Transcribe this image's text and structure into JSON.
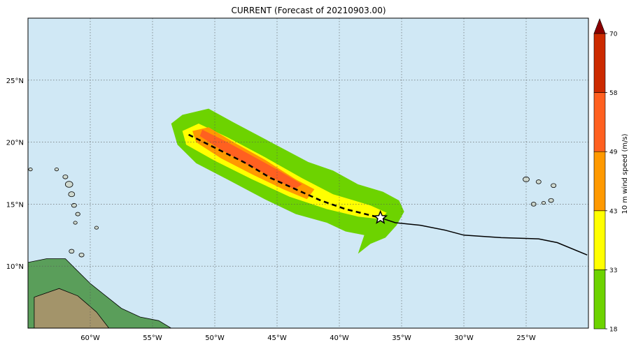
{
  "title": "CURRENT (Forecast of 20210903.00)",
  "map": {
    "lon_range": [
      -65,
      -20
    ],
    "lat_range": [
      5,
      30
    ],
    "x_ticks": [
      {
        "value": -60,
        "label": "60°W"
      },
      {
        "value": -55,
        "label": "55°W"
      },
      {
        "value": -50,
        "label": "50°W"
      },
      {
        "value": -45,
        "label": "45°W"
      },
      {
        "value": -40,
        "label": "40°W"
      },
      {
        "value": -35,
        "label": "35°W"
      },
      {
        "value": -30,
        "label": "30°W"
      },
      {
        "value": -25,
        "label": "25°W"
      }
    ],
    "y_ticks": [
      {
        "value": 10,
        "label": "10°N"
      },
      {
        "value": 15,
        "label": "15°N"
      },
      {
        "value": 20,
        "label": "20°N"
      },
      {
        "value": 25,
        "label": "25°N"
      }
    ],
    "grid": true,
    "ocean_color": "#d0e8f5",
    "current_position": {
      "lon": -36.7,
      "lat": 13.9
    },
    "observed_track": [
      [
        -36.7,
        13.9
      ],
      [
        -35.5,
        13.5
      ],
      [
        -33.5,
        13.3
      ],
      [
        -31.5,
        12.9
      ],
      [
        -30.0,
        12.5
      ],
      [
        -27.0,
        12.3
      ],
      [
        -24.0,
        12.2
      ],
      [
        -22.5,
        11.9
      ],
      [
        -20.1,
        10.9
      ]
    ],
    "forecast_track": [
      [
        -52.1,
        20.6
      ],
      [
        -49.5,
        19.3
      ],
      [
        -47.5,
        18.3
      ],
      [
        -45.5,
        17.1
      ],
      [
        -43.5,
        16.2
      ],
      [
        -41.5,
        15.3
      ],
      [
        -39.5,
        14.6
      ],
      [
        -37.5,
        14.1
      ],
      [
        -36.7,
        13.9
      ]
    ],
    "wind_swath": [
      {
        "threshold": 18,
        "color": "#6dd300",
        "polygon": [
          [
            -52.6,
            22.2
          ],
          [
            -50.5,
            22.7
          ],
          [
            -48.5,
            21.6
          ],
          [
            -45.5,
            20.0
          ],
          [
            -42.5,
            18.4
          ],
          [
            -40.5,
            17.7
          ],
          [
            -38.5,
            16.6
          ],
          [
            -36.5,
            16.0
          ],
          [
            -35.2,
            15.3
          ],
          [
            -34.8,
            14.4
          ],
          [
            -35.4,
            13.3
          ],
          [
            -36.3,
            12.3
          ],
          [
            -37.5,
            11.8
          ],
          [
            -38.5,
            11.0
          ],
          [
            -38.0,
            12.5
          ],
          [
            -39.5,
            12.8
          ],
          [
            -41.0,
            13.5
          ],
          [
            -43.5,
            14.2
          ],
          [
            -46.0,
            15.4
          ],
          [
            -49.0,
            17.0
          ],
          [
            -51.5,
            18.3
          ],
          [
            -53.0,
            19.8
          ],
          [
            -53.5,
            21.5
          ]
        ]
      },
      {
        "threshold": 33,
        "color": "#ffff00",
        "polygon": [
          [
            -52.6,
            20.9
          ],
          [
            -51.3,
            21.5
          ],
          [
            -49.0,
            20.4
          ],
          [
            -46.0,
            18.8
          ],
          [
            -43.0,
            17.1
          ],
          [
            -40.5,
            15.8
          ],
          [
            -37.5,
            14.9
          ],
          [
            -36.2,
            14.3
          ],
          [
            -36.7,
            13.8
          ],
          [
            -38.5,
            14.0
          ],
          [
            -41.0,
            14.6
          ],
          [
            -44.0,
            15.6
          ],
          [
            -47.0,
            17.0
          ],
          [
            -50.0,
            18.5
          ],
          [
            -52.3,
            19.8
          ]
        ]
      },
      {
        "threshold": 43,
        "color": "#ff9900",
        "polygon": [
          [
            -51.8,
            20.9
          ],
          [
            -50.5,
            21.2
          ],
          [
            -48.5,
            20.0
          ],
          [
            -46.0,
            18.6
          ],
          [
            -43.5,
            17.0
          ],
          [
            -42.0,
            16.2
          ],
          [
            -42.6,
            15.4
          ],
          [
            -44.5,
            16.2
          ],
          [
            -47.0,
            17.4
          ],
          [
            -49.5,
            18.7
          ],
          [
            -51.5,
            20.0
          ]
        ]
      },
      {
        "threshold": 49,
        "color": "#ff6020",
        "polygon": [
          [
            -51.0,
            21.0
          ],
          [
            -49.0,
            20.0
          ],
          [
            -47.0,
            18.9
          ],
          [
            -45.0,
            17.8
          ],
          [
            -43.0,
            16.6
          ],
          [
            -43.6,
            16.2
          ],
          [
            -45.5,
            17.2
          ],
          [
            -47.8,
            18.4
          ],
          [
            -50.0,
            19.7
          ],
          [
            -51.2,
            20.5
          ]
        ]
      }
    ],
    "land": [
      {
        "color": "#5a9e5a",
        "polygon": [
          [
            -65,
            10.3
          ],
          [
            -63.5,
            10.6
          ],
          [
            -62.0,
            10.6
          ],
          [
            -61.2,
            9.8
          ],
          [
            -60.0,
            8.6
          ],
          [
            -59.0,
            7.8
          ],
          [
            -57.5,
            6.6
          ],
          [
            -56.0,
            5.9
          ],
          [
            -54.5,
            5.6
          ],
          [
            -53.5,
            5.0
          ],
          [
            -65,
            5.0
          ]
        ]
      },
      {
        "color": "#a3946a",
        "polygon": [
          [
            -64.5,
            7.5
          ],
          [
            -62.5,
            8.2
          ],
          [
            -61.0,
            7.6
          ],
          [
            -59.5,
            6.3
          ],
          [
            -58.5,
            5.0
          ],
          [
            -64.5,
            5.0
          ]
        ]
      }
    ],
    "islands": [
      {
        "center": [
          -61.2,
          13.5
        ],
        "r": 0.15
      },
      {
        "center": [
          -61.0,
          14.2
        ],
        "r": 0.18
      },
      {
        "center": [
          -61.3,
          14.9
        ],
        "r": 0.2
      },
      {
        "center": [
          -61.5,
          15.8
        ],
        "r": 0.25
      },
      {
        "center": [
          -61.7,
          16.6
        ],
        "r": 0.3
      },
      {
        "center": [
          -62.0,
          17.2
        ],
        "r": 0.2
      },
      {
        "center": [
          -62.7,
          17.8
        ],
        "r": 0.15
      },
      {
        "center": [
          -59.5,
          13.1
        ],
        "r": 0.15
      },
      {
        "center": [
          -61.5,
          11.2
        ],
        "r": 0.2
      },
      {
        "center": [
          -60.7,
          10.9
        ],
        "r": 0.2
      },
      {
        "center": [
          -64.8,
          17.8
        ],
        "r": 0.15
      },
      {
        "center": [
          -25.0,
          17.0
        ],
        "r": 0.25
      },
      {
        "center": [
          -24.0,
          16.8
        ],
        "r": 0.2
      },
      {
        "center": [
          -22.8,
          16.5
        ],
        "r": 0.2
      },
      {
        "center": [
          -23.0,
          15.3
        ],
        "r": 0.2
      },
      {
        "center": [
          -24.4,
          15.0
        ],
        "r": 0.2
      },
      {
        "center": [
          -23.6,
          15.1
        ],
        "r": 0.15
      }
    ]
  },
  "colorbar": {
    "label": "10 m wind speed (m/s)",
    "levels": [
      {
        "value": 18,
        "label": "18",
        "color": "#6dd300"
      },
      {
        "value": 33,
        "label": "33",
        "color": "#ffff00"
      },
      {
        "value": 43,
        "label": "43",
        "color": "#ff9900"
      },
      {
        "value": 49,
        "label": "49",
        "color": "#ff6020"
      },
      {
        "value": 58,
        "label": "58",
        "color": "#cc2a00"
      },
      {
        "value": 70,
        "label": "70",
        "color": "#8b0000"
      }
    ]
  }
}
